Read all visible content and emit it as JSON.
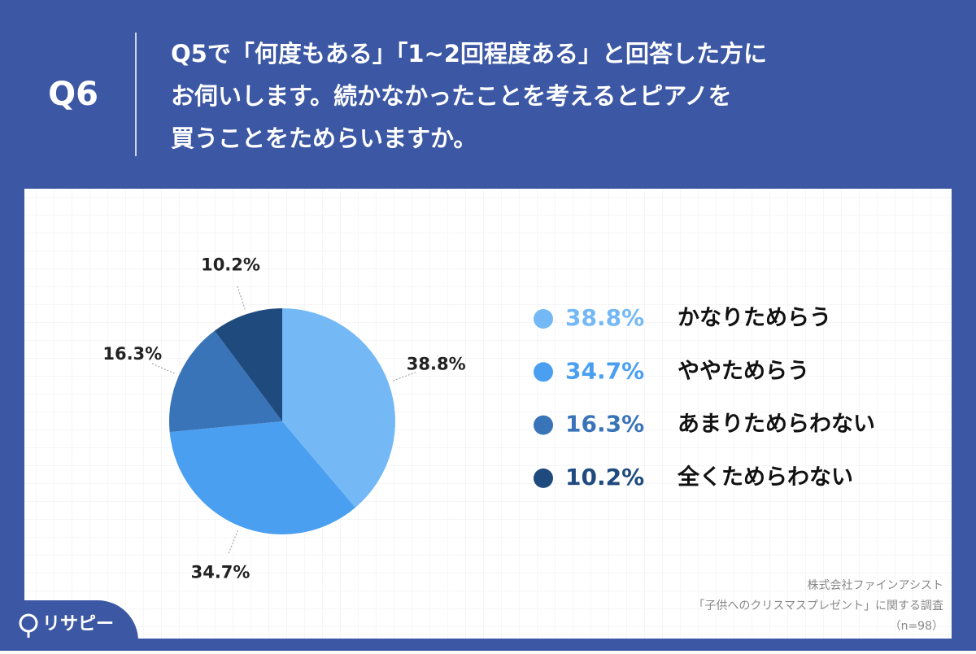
{
  "chart_data": {
    "type": "pie",
    "label": "Q6",
    "title": [
      "Q5で「何度もある」「1~2回程度ある」と回答した方に",
      "お伺いします。続かなかったことを考えるとピアノを",
      "買うことをためらいますか。"
    ],
    "categories": [
      "かなりためらう",
      "ややためらう",
      "あまりためらわない",
      "全くためらわない"
    ],
    "values": [
      38.8,
      34.7,
      16.3,
      10.2
    ],
    "value_labels": [
      "38.8%",
      "34.7%",
      "16.3%",
      "10.2%"
    ],
    "colors": [
      "#74b9f5",
      "#4a9ff0",
      "#3a74b8",
      "#1f4a7e"
    ],
    "source": [
      "株式会社ファインアシスト",
      "「子供へのクリスマスプレゼント」に関する調査",
      "（n=98）"
    ],
    "logo": "リサピー"
  }
}
